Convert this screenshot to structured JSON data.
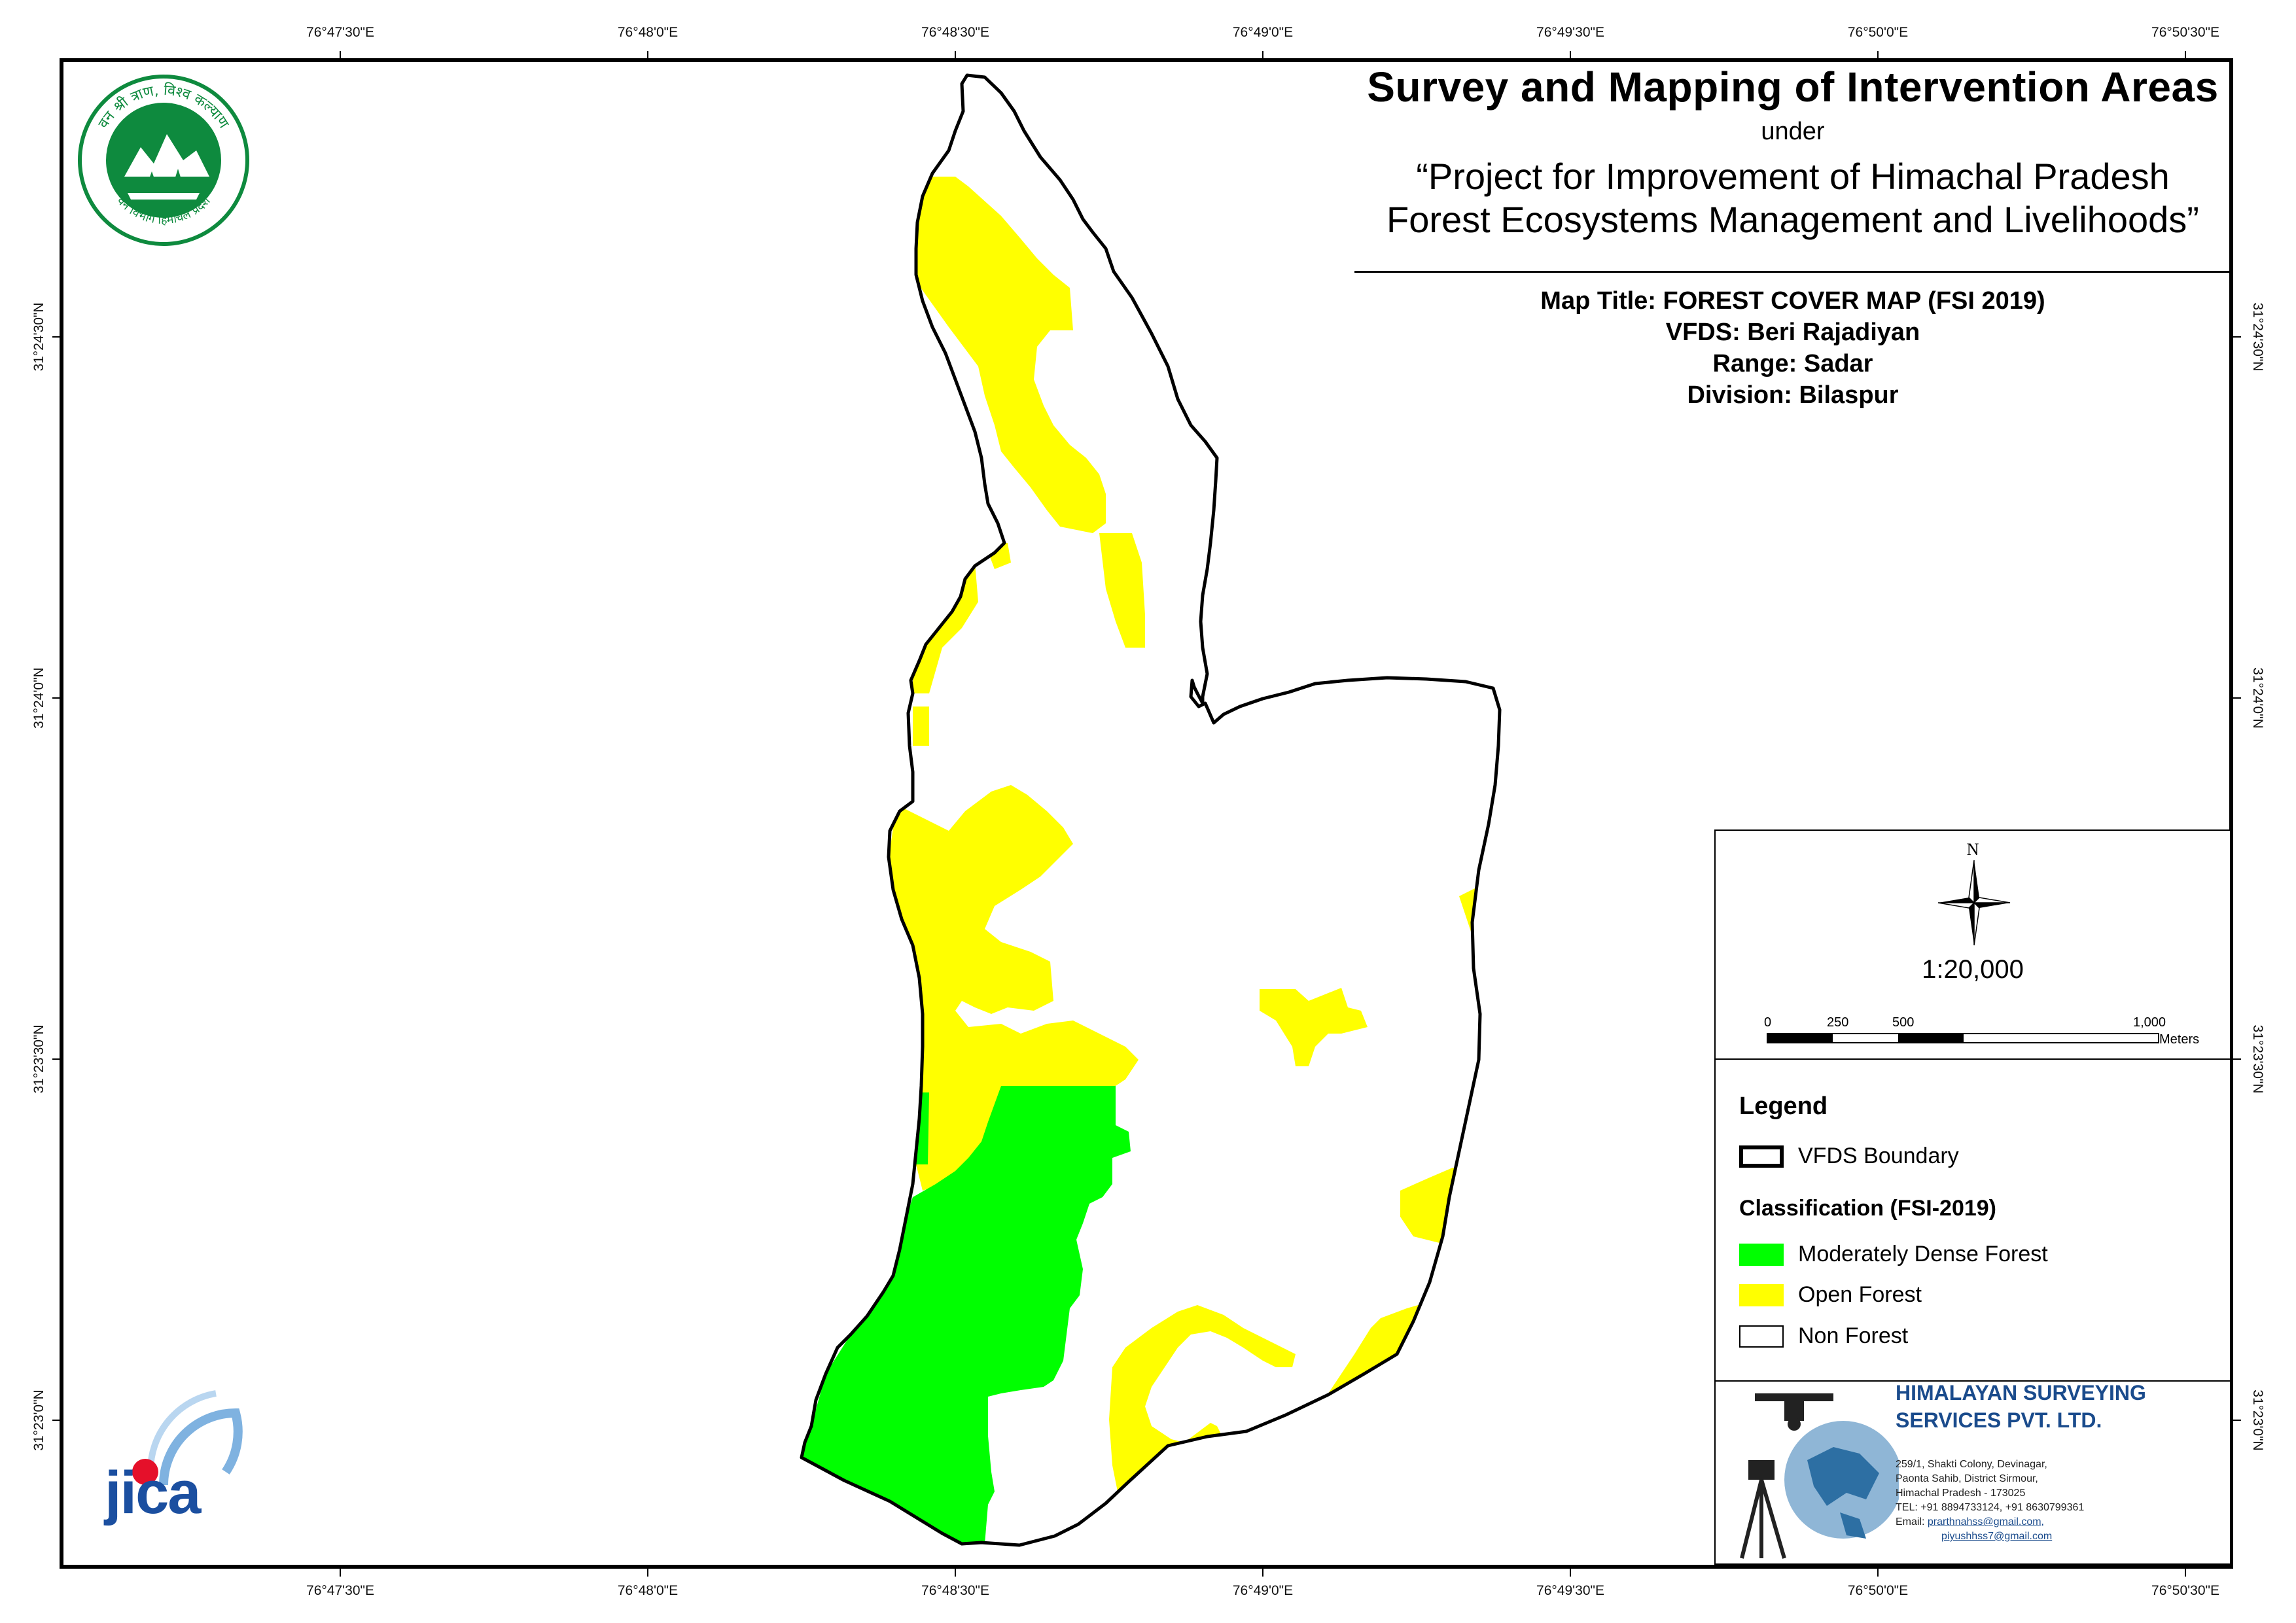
{
  "title": {
    "main": "Survey and Mapping of Intervention Areas",
    "under": "under",
    "project_line1": "“Project for Improvement of Himachal Pradesh",
    "project_line2": "Forest Ecosystems Management and Livelihoods”"
  },
  "map_info": {
    "map_title": "Map Title: FOREST COVER MAP (FSI 2019)",
    "vfds": "VFDS: Beri Rajadiyan",
    "range": "Range: Sadar",
    "division": "Division: Bilaspur"
  },
  "graticule": {
    "top": [
      "76°47'30\"E",
      "76°48'0\"E",
      "76°48'30\"E",
      "76°49'0\"E",
      "76°49'30\"E",
      "76°50'0\"E",
      "76°50'30\"E"
    ],
    "bottom": [
      "76°47'30\"E",
      "76°48'0\"E",
      "76°48'30\"E",
      "76°49'0\"E",
      "76°49'30\"E",
      "76°50'0\"E",
      "76°50'30\"E"
    ],
    "left": [
      "31°24'30\"N",
      "31°24'0\"N",
      "31°23'30\"N",
      "31°23'0\"N"
    ],
    "right": [
      "31°24'30\"N",
      "31°24'0\"N",
      "31°23'30\"N",
      "31°23'0\"N"
    ]
  },
  "north_arrow": {
    "label": "N"
  },
  "scale": {
    "ratio": "1:20,000",
    "ticks": [
      "0",
      "250",
      "500",
      "1,000"
    ],
    "unit": "Meters"
  },
  "legend": {
    "title": "Legend",
    "boundary_label": "VFDS Boundary",
    "classification_title": "Classification (FSI-2019)",
    "classes": [
      {
        "label": "Moderately Dense Forest",
        "color": "#00ff00"
      },
      {
        "label": "Open Forest",
        "color": "#ffff00"
      },
      {
        "label": "Non Forest",
        "color": "#ffffff"
      }
    ]
  },
  "company": {
    "name_line1": "HIMALAYAN SURVEYING",
    "name_line2": "SERVICES PVT. LTD.",
    "address": [
      "259/1, Shakti Colony, Devinagar,",
      "Paonta Sahib, District Sirmour,",
      "Himachal Pradesh - 173025",
      "TEL: +91 8894733124, +91 8630799361"
    ],
    "email_label": "Email:",
    "email1": "prarthnahss@gmail.com,",
    "email2": "piyushhss7@gmail.com"
  },
  "logos": {
    "forest_dept_top": "वन श्री त्राण, विश्व कल्याण",
    "forest_dept_bottom": "वन विभाग हिमाचल प्रदेश",
    "jica": "jica"
  },
  "colors": {
    "moderately_dense": "#00ff00",
    "open_forest": "#ffff00",
    "boundary": "#000000",
    "logo_green": "#0e8a3e",
    "jica_blue": "#1b4fa0",
    "jica_red": "#e5102a",
    "company_blue": "#1a4b8c"
  }
}
